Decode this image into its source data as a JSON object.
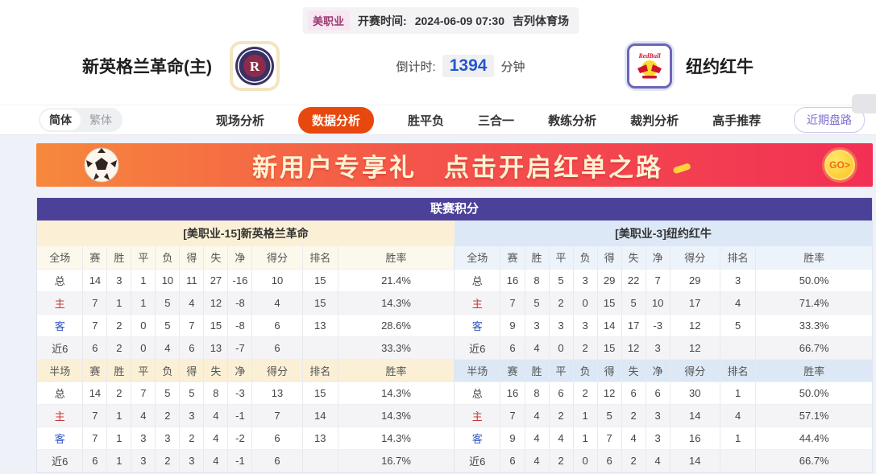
{
  "header": {
    "league_badge": "美职业",
    "kickoff_label": "开赛时间:",
    "kickoff_time": "2024-06-09 07:30",
    "venue": "吉列体育场",
    "home_team": "新英格兰革命(主)",
    "away_team": "纽约红牛",
    "countdown_label": "倒计时:",
    "countdown_value": "1394",
    "countdown_unit": "分钟"
  },
  "nav": {
    "lang_simplified": "简体",
    "lang_traditional": "繁体",
    "tabs": [
      "现场分析",
      "数据分析",
      "胜平负",
      "三合一",
      "教练分析",
      "裁判分析",
      "高手推荐"
    ],
    "active_tab": "数据分析",
    "recent_button": "近期盘路"
  },
  "banner": {
    "text": "新用户专享礼",
    "text2": "点击开启红单之路",
    "go_label": "GO>"
  },
  "table": {
    "title": "联赛积分",
    "home_header": "[美职业-15]新英格兰革命",
    "away_header": "[美职业-3]纽约红牛",
    "full_label": "全场",
    "half_label": "半场",
    "columns": [
      "赛",
      "胜",
      "平",
      "负",
      "得",
      "失",
      "净",
      "得分",
      "排名",
      "胜率"
    ],
    "row_label_colors": {
      "主": "red",
      "客": "blue"
    },
    "home": {
      "full": [
        {
          "label": "总",
          "values": [
            "14",
            "3",
            "1",
            "10",
            "11",
            "27",
            "-16",
            "10",
            "15",
            "21.4%"
          ]
        },
        {
          "label": "主",
          "values": [
            "7",
            "1",
            "1",
            "5",
            "4",
            "12",
            "-8",
            "4",
            "15",
            "14.3%"
          ]
        },
        {
          "label": "客",
          "values": [
            "7",
            "2",
            "0",
            "5",
            "7",
            "15",
            "-8",
            "6",
            "13",
            "28.6%"
          ]
        },
        {
          "label": "近6",
          "values": [
            "6",
            "2",
            "0",
            "4",
            "6",
            "13",
            "-7",
            "6",
            "",
            "33.3%"
          ]
        }
      ],
      "half": [
        {
          "label": "总",
          "values": [
            "14",
            "2",
            "7",
            "5",
            "5",
            "8",
            "-3",
            "13",
            "15",
            "14.3%"
          ]
        },
        {
          "label": "主",
          "values": [
            "7",
            "1",
            "4",
            "2",
            "3",
            "4",
            "-1",
            "7",
            "14",
            "14.3%"
          ]
        },
        {
          "label": "客",
          "values": [
            "7",
            "1",
            "3",
            "3",
            "2",
            "4",
            "-2",
            "6",
            "13",
            "14.3%"
          ]
        },
        {
          "label": "近6",
          "values": [
            "6",
            "1",
            "3",
            "2",
            "3",
            "4",
            "-1",
            "6",
            "",
            "16.7%"
          ]
        }
      ]
    },
    "away": {
      "full": [
        {
          "label": "总",
          "values": [
            "16",
            "8",
            "5",
            "3",
            "29",
            "22",
            "7",
            "29",
            "3",
            "50.0%"
          ]
        },
        {
          "label": "主",
          "values": [
            "7",
            "5",
            "2",
            "0",
            "15",
            "5",
            "10",
            "17",
            "4",
            "71.4%"
          ]
        },
        {
          "label": "客",
          "values": [
            "9",
            "3",
            "3",
            "3",
            "14",
            "17",
            "-3",
            "12",
            "5",
            "33.3%"
          ]
        },
        {
          "label": "近6",
          "values": [
            "6",
            "4",
            "0",
            "2",
            "15",
            "12",
            "3",
            "12",
            "",
            "66.7%"
          ]
        }
      ],
      "half": [
        {
          "label": "总",
          "values": [
            "16",
            "8",
            "6",
            "2",
            "12",
            "6",
            "6",
            "30",
            "1",
            "50.0%"
          ]
        },
        {
          "label": "主",
          "values": [
            "7",
            "4",
            "2",
            "1",
            "5",
            "2",
            "3",
            "14",
            "4",
            "57.1%"
          ]
        },
        {
          "label": "客",
          "values": [
            "9",
            "4",
            "4",
            "1",
            "7",
            "4",
            "3",
            "16",
            "1",
            "44.4%"
          ]
        },
        {
          "label": "近6",
          "values": [
            "6",
            "4",
            "2",
            "0",
            "6",
            "2",
            "4",
            "14",
            "",
            "66.7%"
          ]
        }
      ]
    }
  },
  "colors": {
    "accent_active_tab": "#e8480e",
    "table_title_purple": "#4c4199",
    "home_tint": "#fbf0d6",
    "away_tint": "#dce8f5",
    "home_row_label": "#cc3333",
    "away_row_label": "#3156c4",
    "countdown_blue": "#2457d0",
    "banner_gradient_start": "#f6883c",
    "banner_gradient_end": "#f23055",
    "league_badge_text": "#9c3b74"
  }
}
